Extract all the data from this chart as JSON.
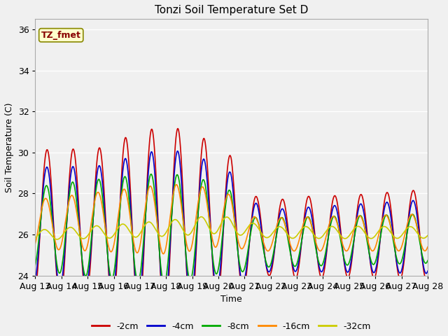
{
  "title": "Tonzi Soil Temperature Set D",
  "xlabel": "Time",
  "ylabel": "Soil Temperature (C)",
  "ylim": [
    24,
    36.5
  ],
  "xlim": [
    0,
    15
  ],
  "fig_bg_color": "#f0f0f0",
  "plot_bg_color": "#f0f0f0",
  "annotation_text": "TZ_fmet",
  "annotation_bg": "#ffffcc",
  "annotation_border": "#888800",
  "annotation_color": "#880000",
  "legend_entries": [
    "-2cm",
    "-4cm",
    "-8cm",
    "-16cm",
    "-32cm"
  ],
  "series_colors": [
    "#cc0000",
    "#0000cc",
    "#00aa00",
    "#ff8800",
    "#cccc00"
  ],
  "x_tick_labels": [
    "Aug 13",
    "Aug 14",
    "Aug 15",
    "Aug 16",
    "Aug 17",
    "Aug 18",
    "Aug 19",
    "Aug 20",
    "Aug 21",
    "Aug 22",
    "Aug 23",
    "Aug 24",
    "Aug 25",
    "Aug 26",
    "Aug 27",
    "Aug 28"
  ]
}
